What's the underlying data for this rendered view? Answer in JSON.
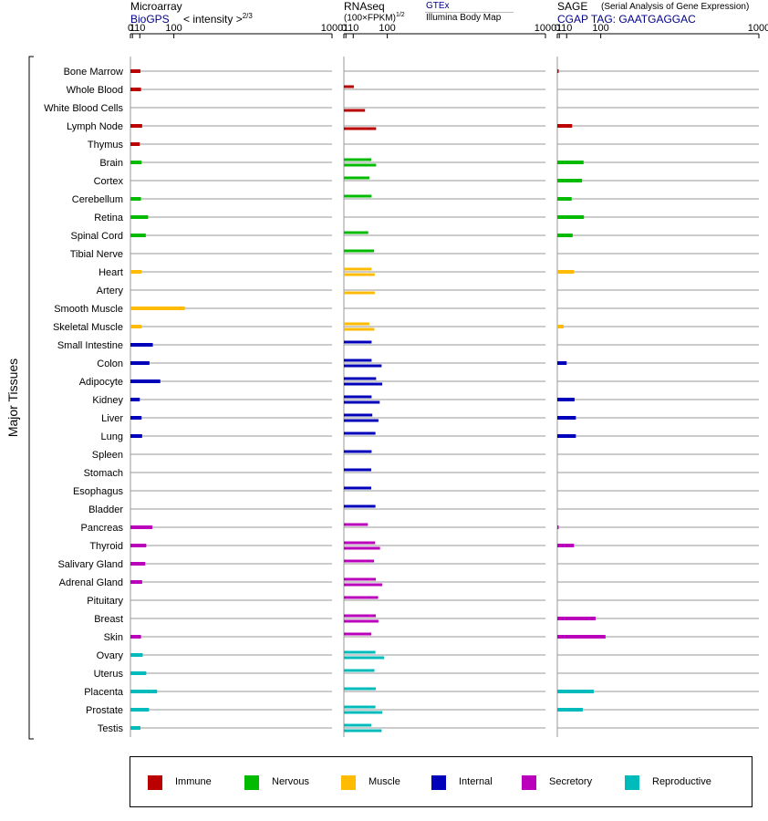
{
  "headers": {
    "microarray_title": "Microarray",
    "microarray_source": "BioGPS",
    "microarray_unit_prefix": "< intensity >",
    "microarray_unit_exp": "2/3",
    "rnaseq_title": "RNAseq",
    "rnaseq_unit": "(100×FPKM)",
    "rnaseq_unit_exp": "1/2",
    "rnaseq_source_top": "GTEx",
    "rnaseq_source_bottom": "Illumina Body Map",
    "sage_title": "SAGE",
    "sage_subtitle": "(Serial Analysis of Gene Expression)",
    "sage_tag": "CGAP TAG: GAATGAGGAC"
  },
  "chart_data": {
    "type": "bar",
    "orientation": "horizontal",
    "y_axis_label": "Major Tissues",
    "x_scale": "power 2/3 (tick labels 0, 1, 10, 100, 1000)",
    "x_ticks": [
      "0",
      "1",
      "10",
      "100",
      "1000"
    ],
    "xlim": [
      0,
      1000
    ],
    "categories": [
      "Bone Marrow",
      "Whole Blood",
      "White Blood Cells",
      "Lymph Node",
      "Thymus",
      "Brain",
      "Cortex",
      "Cerebellum",
      "Retina",
      "Spinal Cord",
      "Tibial Nerve",
      "Heart",
      "Artery",
      "Smooth Muscle",
      "Skeletal Muscle",
      "Small Intestine",
      "Colon",
      "Adipocyte",
      "Kidney",
      "Liver",
      "Lung",
      "Spleen",
      "Stomach",
      "Esophagus",
      "Bladder",
      "Pancreas",
      "Thyroid",
      "Salivary Gland",
      "Adrenal Gland",
      "Pituitary",
      "Breast",
      "Skin",
      "Ovary",
      "Uterus",
      "Placenta",
      "Prostate",
      "Testis"
    ],
    "groups": [
      "Immune",
      "Immune",
      "Immune",
      "Immune",
      "Immune",
      "Nervous",
      "Nervous",
      "Nervous",
      "Nervous",
      "Nervous",
      "Nervous",
      "Muscle",
      "Muscle",
      "Muscle",
      "Muscle",
      "Internal",
      "Internal",
      "Internal",
      "Internal",
      "Internal",
      "Internal",
      "Internal",
      "Internal",
      "Internal",
      "Internal",
      "Secretory",
      "Secretory",
      "Secretory",
      "Secretory",
      "Secretory",
      "Secretory",
      "Secretory",
      "Reproductive",
      "Reproductive",
      "Reproductive",
      "Reproductive",
      "Reproductive"
    ],
    "group_colors": {
      "Immune": "#bb0000",
      "Nervous": "#00bb00",
      "Muscle": "#ffbb00",
      "Internal": "#0000bb",
      "Secretory": "#bb00bb",
      "Reproductive": "#00bbbb"
    },
    "legend": [
      "Immune",
      "Nervous",
      "Muscle",
      "Internal",
      "Secretory",
      "Reproductive"
    ],
    "panels": [
      {
        "name": "Microarray",
        "series": [
          {
            "values": [
              11,
              12,
              null,
              14,
              10,
              13,
              null,
              12,
              26,
              21,
              null,
              13,
              null,
              140,
              13,
              37,
              29,
              57,
              10,
              13,
              14,
              null,
              null,
              null,
              null,
              36,
              22,
              20,
              14,
              null,
              null,
              12,
              15,
              22,
              48,
              28,
              11
            ]
          }
        ]
      },
      {
        "name": "RNAseq",
        "series": [
          {
            "source": "GTEx",
            "values": [
              null,
              11,
              null,
              null,
              null,
              50,
              45,
              51,
              null,
              42,
              58,
              51,
              null,
              null,
              45,
              51,
              51,
              64,
              51,
              53,
              62,
              51,
              50,
              50,
              62,
              41,
              61,
              58,
              63,
              70,
              63,
              50,
              62,
              59,
              63,
              62,
              50
            ]
          },
          {
            "source": "Illumina Body Map",
            "values": [
              null,
              null,
              34,
              64,
              null,
              64,
              null,
              null,
              null,
              null,
              null,
              60,
              60,
              null,
              59,
              null,
              81,
              83,
              75,
              71,
              null,
              null,
              null,
              null,
              null,
              null,
              76,
              null,
              83,
              null,
              71,
              null,
              89,
              null,
              null,
              83,
              81
            ]
          }
        ]
      },
      {
        "name": "SAGE",
        "series": [
          {
            "values": [
              0.3,
              null,
              null,
              20,
              null,
              47,
              43,
              19,
              48,
              21,
              null,
              24,
              null,
              null,
              5.5,
              null,
              10,
              null,
              25,
              28,
              28,
              null,
              null,
              null,
              null,
              0.2,
              24,
              null,
              null,
              null,
              83,
              117,
              null,
              null,
              77,
              45,
              null
            ]
          }
        ]
      }
    ]
  }
}
